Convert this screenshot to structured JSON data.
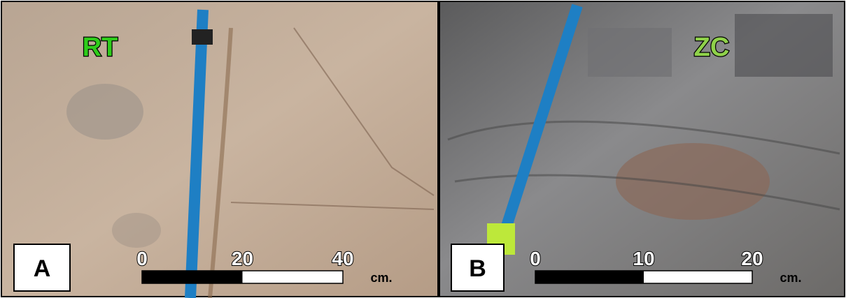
{
  "panels": [
    {
      "label": "A",
      "rock_label": "RT",
      "scale": {
        "ticks": [
          0,
          20,
          40
        ],
        "unit": "cm."
      }
    },
    {
      "label": "B",
      "rock_label": "ZC",
      "scale": {
        "ticks": [
          0,
          10,
          20
        ],
        "unit": "cm."
      }
    }
  ]
}
